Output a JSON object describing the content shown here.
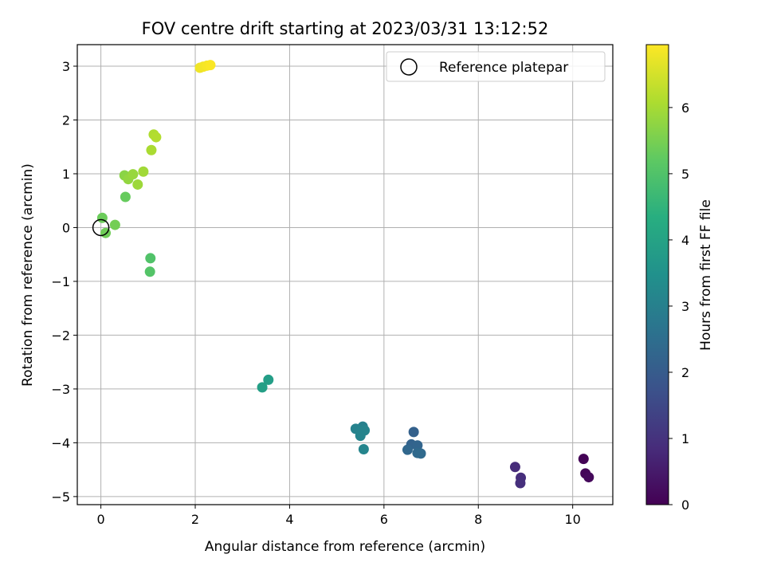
{
  "chart_data": {
    "type": "scatter",
    "title": "FOV centre drift starting at 2023/03/31 13:12:52",
    "xlabel": "Angular distance from reference (arcmin)",
    "ylabel": "Rotation from reference (arcmin)",
    "xlim": [
      -0.5,
      10.85
    ],
    "ylim": [
      -5.15,
      3.4
    ],
    "xticks": [
      0,
      2,
      4,
      6,
      8,
      10
    ],
    "yticks": [
      -5,
      -4,
      -3,
      -2,
      -1,
      0,
      1,
      2,
      3
    ],
    "grid": true,
    "legend": {
      "placement": "upper right",
      "entries": [
        {
          "label": "Reference platepar",
          "marker": "open-circle",
          "x": 0,
          "y": 0
        }
      ]
    },
    "colorbar": {
      "label": "Hours from first FF file",
      "colormap": "viridis",
      "range": [
        0,
        6.95
      ],
      "ticks": [
        0,
        1,
        2,
        3,
        4,
        5,
        6
      ]
    },
    "points": [
      {
        "x": 10.23,
        "y": -4.3,
        "c": 0.05
      },
      {
        "x": 10.27,
        "y": -4.57,
        "c": 0.1
      },
      {
        "x": 10.34,
        "y": -4.64,
        "c": 0.15
      },
      {
        "x": 8.78,
        "y": -4.45,
        "c": 0.85
      },
      {
        "x": 8.9,
        "y": -4.65,
        "c": 0.9
      },
      {
        "x": 8.89,
        "y": -4.75,
        "c": 0.95
      },
      {
        "x": 6.63,
        "y": -3.8,
        "c": 2.15
      },
      {
        "x": 6.58,
        "y": -4.03,
        "c": 2.2
      },
      {
        "x": 6.71,
        "y": -4.05,
        "c": 2.25
      },
      {
        "x": 6.5,
        "y": -4.13,
        "c": 2.3
      },
      {
        "x": 6.71,
        "y": -4.19,
        "c": 2.35
      },
      {
        "x": 6.78,
        "y": -4.2,
        "c": 2.4
      },
      {
        "x": 5.55,
        "y": -3.7,
        "c": 3.0
      },
      {
        "x": 5.4,
        "y": -3.74,
        "c": 3.05
      },
      {
        "x": 5.51,
        "y": -3.78,
        "c": 3.08
      },
      {
        "x": 5.59,
        "y": -3.77,
        "c": 3.1
      },
      {
        "x": 5.5,
        "y": -3.87,
        "c": 3.12
      },
      {
        "x": 5.57,
        "y": -4.12,
        "c": 3.15
      },
      {
        "x": 3.55,
        "y": -2.83,
        "c": 3.85
      },
      {
        "x": 3.42,
        "y": -2.97,
        "c": 3.9
      },
      {
        "x": 1.05,
        "y": -0.57,
        "c": 5.0
      },
      {
        "x": 1.04,
        "y": -0.82,
        "c": 5.05
      },
      {
        "x": 0.03,
        "y": 0.18,
        "c": 5.35
      },
      {
        "x": 0.1,
        "y": -0.1,
        "c": 5.4
      },
      {
        "x": 0.3,
        "y": 0.05,
        "c": 5.45
      },
      {
        "x": 0.52,
        "y": 0.57,
        "c": 5.3
      },
      {
        "x": 0.5,
        "y": 0.97,
        "c": 5.7
      },
      {
        "x": 0.58,
        "y": 0.9,
        "c": 5.8
      },
      {
        "x": 0.68,
        "y": 0.99,
        "c": 5.85
      },
      {
        "x": 0.78,
        "y": 0.8,
        "c": 5.9
      },
      {
        "x": 0.9,
        "y": 1.04,
        "c": 5.95
      },
      {
        "x": 1.07,
        "y": 1.44,
        "c": 6.05
      },
      {
        "x": 1.12,
        "y": 1.73,
        "c": 6.1
      },
      {
        "x": 1.17,
        "y": 1.68,
        "c": 6.15
      },
      {
        "x": 2.1,
        "y": 2.97,
        "c": 6.8
      },
      {
        "x": 2.17,
        "y": 2.99,
        "c": 6.83
      },
      {
        "x": 2.25,
        "y": 3.01,
        "c": 6.87
      },
      {
        "x": 2.32,
        "y": 3.02,
        "c": 6.92
      }
    ]
  }
}
